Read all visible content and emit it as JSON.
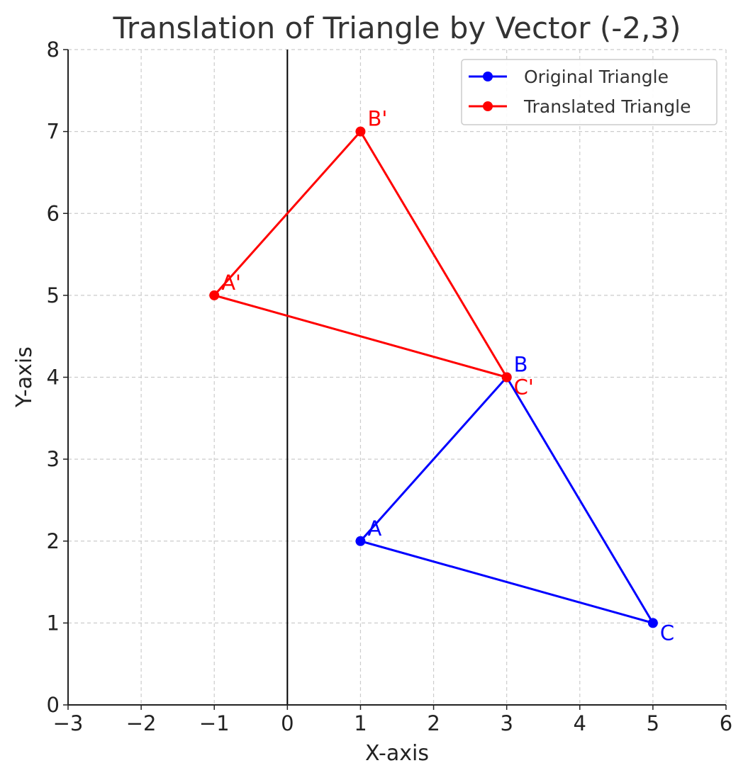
{
  "chart_data": {
    "type": "line",
    "title": "Translation of Triangle by Vector (-2,3)",
    "xlabel": "X-axis",
    "ylabel": "Y-axis",
    "xlim": [
      -3,
      6
    ],
    "ylim": [
      0,
      8
    ],
    "xticks": [
      -3,
      -2,
      -1,
      0,
      1,
      2,
      3,
      4,
      5,
      6
    ],
    "yticks": [
      0,
      1,
      2,
      3,
      4,
      5,
      6,
      7,
      8
    ],
    "xtick_labels": [
      "−3",
      "−2",
      "−1",
      "0",
      "1",
      "2",
      "3",
      "4",
      "5",
      "6"
    ],
    "ytick_labels": [
      "0",
      "1",
      "2",
      "3",
      "4",
      "5",
      "6",
      "7",
      "8"
    ],
    "grid": true,
    "legend_position": "top-right",
    "series": [
      {
        "name": "Original Triangle",
        "color": "#0000ff",
        "points": [
          {
            "label": "A",
            "x": 1,
            "y": 2
          },
          {
            "label": "B",
            "x": 3,
            "y": 4
          },
          {
            "label": "C",
            "x": 5,
            "y": 1
          }
        ]
      },
      {
        "name": "Translated Triangle",
        "color": "#ff0000",
        "points": [
          {
            "label": "A'",
            "x": -1,
            "y": 5
          },
          {
            "label": "B'",
            "x": 1,
            "y": 7
          },
          {
            "label": "C'",
            "x": 3,
            "y": 4
          }
        ]
      }
    ]
  }
}
